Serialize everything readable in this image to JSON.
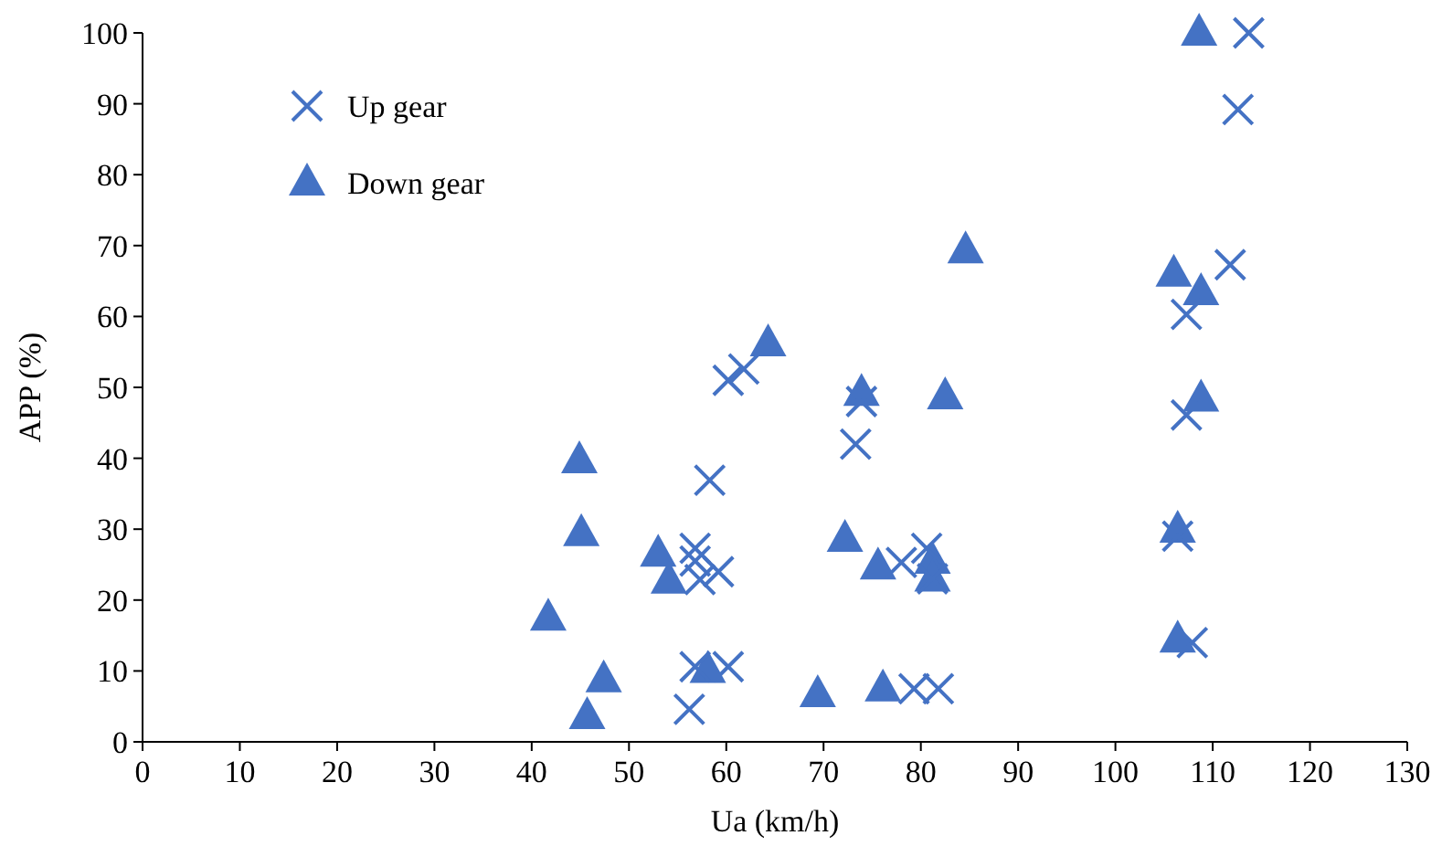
{
  "chart_data": {
    "type": "scatter",
    "xlabel": "Ua (km/h)",
    "ylabel": "APP (%)",
    "xlim": [
      0,
      130
    ],
    "xticks": [
      0,
      10,
      20,
      30,
      40,
      50,
      60,
      70,
      80,
      90,
      100,
      110,
      120,
      130
    ],
    "ylim": [
      0,
      100
    ],
    "yticks": [
      0,
      10,
      20,
      30,
      40,
      50,
      60,
      70,
      80,
      90,
      100
    ],
    "grid": false,
    "legend": "top left",
    "series": [
      {
        "name": "Up gear",
        "color": "#4472c4",
        "marker": "cross",
        "x": [
          113.7,
          112.6,
          111.8,
          107.3,
          107.3,
          106.4,
          107.9,
          73.9,
          73.3,
          60.2,
          61.8,
          58.3,
          56.8,
          57.3,
          59.2,
          56.8,
          56.8,
          60.2,
          56.2,
          78,
          81.2,
          80.6,
          79.3,
          81.8
        ],
        "values": [
          100,
          89.2,
          67.3,
          60.3,
          46.1,
          29,
          14,
          48,
          42,
          51,
          52.6,
          36.9,
          27.3,
          22.9,
          24,
          25.5,
          10.6,
          10.6,
          4.6,
          25.3,
          23,
          27.3,
          7.5,
          7.5
        ]
      },
      {
        "name": "Down gear",
        "color": "#4472c4",
        "marker": "triangle",
        "x": [
          108.6,
          106,
          108.8,
          108.8,
          106.4,
          106.4,
          84.6,
          82.5,
          75.6,
          81.2,
          81.2,
          76.1,
          64.3,
          44.9,
          45.1,
          53,
          54.1,
          41.7,
          47.4,
          45.7,
          58.1,
          69.4,
          72.2,
          73.9
        ],
        "values": [
          100,
          66,
          63.4,
          48.4,
          29.9,
          14.4,
          69.3,
          48.7,
          24.7,
          25.5,
          23,
          7.5,
          56.2,
          39.7,
          29.4,
          26.5,
          22.7,
          17.5,
          8.8,
          3.6,
          10.1,
          6.7,
          28.6,
          49.2
        ]
      }
    ]
  }
}
